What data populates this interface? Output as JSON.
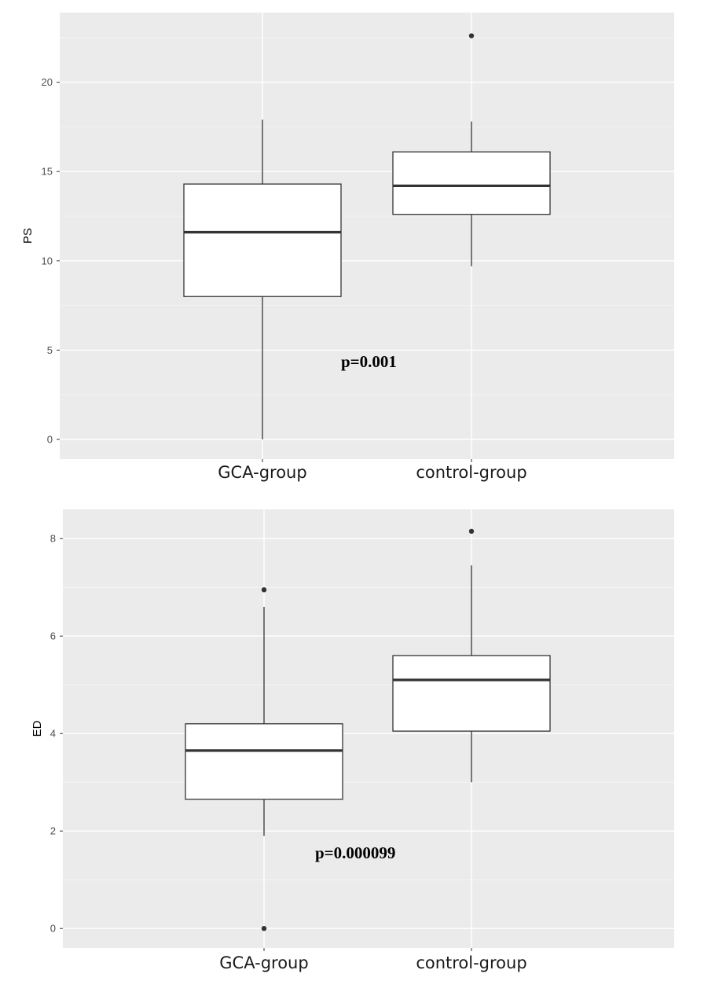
{
  "chart_data": [
    {
      "type": "box",
      "ylabel": "PS",
      "categories": [
        "GCA-group",
        "control-group"
      ],
      "ylim": [
        -1.1,
        23.9
      ],
      "yticks": [
        0,
        5,
        10,
        15,
        20
      ],
      "grid": true,
      "boxes": [
        {
          "category": "GCA-group",
          "whisker_low": 0,
          "q1": 8.0,
          "median": 11.6,
          "q3": 14.3,
          "whisker_high": 17.9,
          "outliers": []
        },
        {
          "category": "control-group",
          "whisker_low": 9.7,
          "q1": 12.6,
          "median": 14.2,
          "q3": 16.1,
          "whisker_high": 17.8,
          "outliers": [
            22.6
          ]
        }
      ],
      "annotation": "p=0.001"
    },
    {
      "type": "box",
      "ylabel": "ED",
      "categories": [
        "GCA-group",
        "control-group"
      ],
      "ylim": [
        -0.4,
        8.6
      ],
      "yticks": [
        0,
        2,
        4,
        6,
        8
      ],
      "grid": true,
      "boxes": [
        {
          "category": "GCA-group",
          "whisker_low": 1.9,
          "q1": 2.65,
          "median": 3.65,
          "q3": 4.2,
          "whisker_high": 6.6,
          "outliers": [
            6.95,
            0.0
          ]
        },
        {
          "category": "control-group",
          "whisker_low": 3.0,
          "q1": 4.05,
          "median": 5.1,
          "q3": 5.6,
          "whisker_high": 7.45,
          "outliers": [
            8.15
          ]
        }
      ],
      "annotation": "p=0.000099"
    }
  ]
}
